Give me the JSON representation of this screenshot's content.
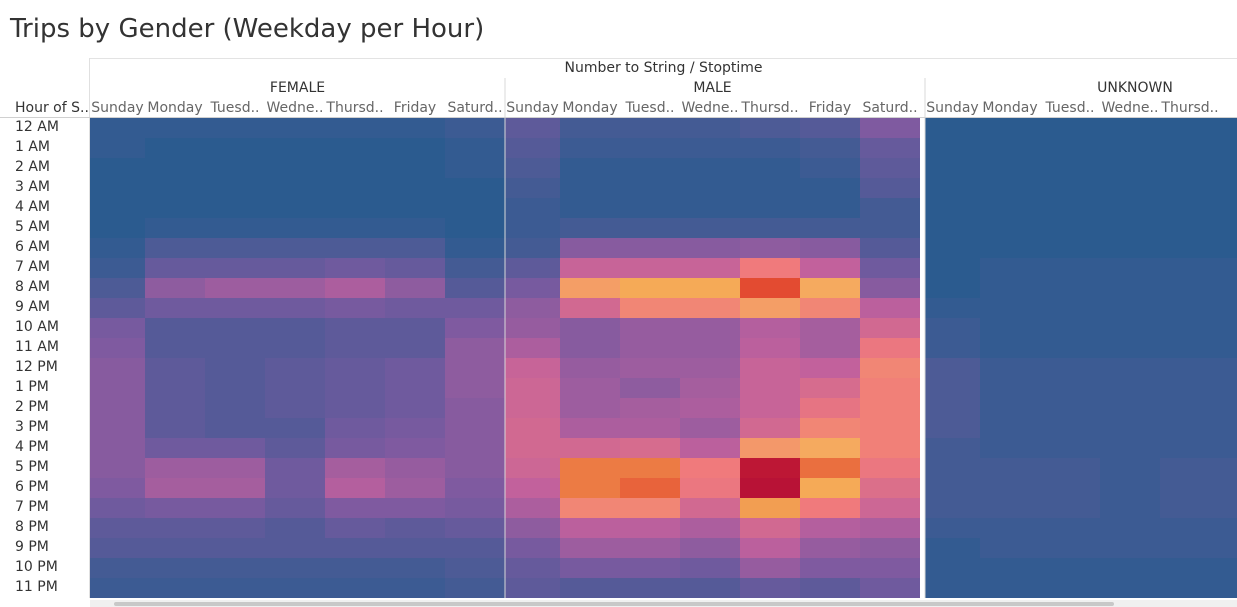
{
  "title": "Trips by Gender (Weekday per Hour)",
  "chart_data": {
    "type": "heatmap",
    "title": "Trips by Gender (Weekday per Hour)",
    "column_header": "Number to String / Stoptime",
    "row_header": "Hour of S..",
    "groups": [
      "FEMALE",
      "MALE",
      "UNKNOWN"
    ],
    "day_labels": [
      "Sunday",
      "Monday",
      "Tuesd..",
      "Wedne..",
      "Thursd..",
      "Friday",
      "Saturd.."
    ],
    "day_labels_unknown": [
      "Sunday",
      "Monday",
      "Tuesd..",
      "Wedne..",
      "Thursd.."
    ],
    "rows": [
      "12 AM",
      "1 AM",
      "2 AM",
      "3 AM",
      "4 AM",
      "5 AM",
      "6 AM",
      "7 AM",
      "8 AM",
      "9 AM",
      "10 AM",
      "11 AM",
      "12 PM",
      "1 PM",
      "2 PM",
      "3 PM",
      "4 PM",
      "5 PM",
      "6 PM",
      "7 PM",
      "8 PM",
      "9 PM",
      "10 PM",
      "11 PM"
    ],
    "color_scale": [
      "#2b5b8f",
      "#7a5aa0",
      "#c0609d",
      "#f07a7c",
      "#f6b25a",
      "#e2432e",
      "#b81236"
    ],
    "values": {
      "FEMALE": [
        [
          1,
          1,
          1,
          1,
          1,
          1,
          2
        ],
        [
          1,
          0,
          0,
          0,
          0,
          0,
          1
        ],
        [
          0,
          0,
          0,
          0,
          0,
          0,
          1
        ],
        [
          0,
          0,
          0,
          0,
          0,
          0,
          0
        ],
        [
          0,
          0,
          0,
          0,
          0,
          0,
          0
        ],
        [
          0,
          1,
          1,
          1,
          1,
          1,
          0
        ],
        [
          1,
          4,
          4,
          4,
          4,
          4,
          1
        ],
        [
          2,
          7,
          7,
          7,
          8,
          7,
          3
        ],
        [
          4,
          12,
          14,
          14,
          16,
          12,
          5
        ],
        [
          6,
          8,
          8,
          8,
          9,
          8,
          8
        ],
        [
          9,
          5,
          5,
          5,
          6,
          6,
          10
        ],
        [
          10,
          5,
          5,
          5,
          6,
          6,
          12
        ],
        [
          11,
          6,
          5,
          6,
          7,
          8,
          12
        ],
        [
          11,
          6,
          5,
          6,
          7,
          8,
          12
        ],
        [
          11,
          6,
          5,
          6,
          7,
          8,
          11
        ],
        [
          11,
          6,
          5,
          5,
          8,
          9,
          11
        ],
        [
          11,
          8,
          8,
          6,
          9,
          10,
          11
        ],
        [
          11,
          14,
          14,
          8,
          15,
          13,
          11
        ],
        [
          10,
          15,
          15,
          8,
          17,
          14,
          10
        ],
        [
          8,
          9,
          9,
          7,
          10,
          10,
          9
        ],
        [
          6,
          6,
          6,
          5,
          7,
          6,
          7
        ],
        [
          5,
          5,
          5,
          5,
          5,
          5,
          5
        ],
        [
          3,
          3,
          3,
          3,
          3,
          3,
          4
        ],
        [
          2,
          2,
          2,
          2,
          2,
          2,
          3
        ]
      ],
      "MALE": [
        [
          6,
          3,
          3,
          3,
          4,
          5,
          10
        ],
        [
          5,
          2,
          2,
          2,
          2,
          3,
          7
        ],
        [
          4,
          1,
          1,
          1,
          1,
          2,
          6
        ],
        [
          3,
          1,
          1,
          1,
          1,
          1,
          5
        ],
        [
          2,
          1,
          1,
          1,
          1,
          1,
          3
        ],
        [
          2,
          3,
          3,
          3,
          3,
          3,
          3
        ],
        [
          3,
          11,
          11,
          11,
          12,
          11,
          5
        ],
        [
          6,
          20,
          20,
          20,
          28,
          19,
          8
        ],
        [
          9,
          34,
          38,
          38,
          46,
          36,
          11
        ],
        [
          12,
          22,
          30,
          30,
          34,
          30,
          18
        ],
        [
          13,
          11,
          13,
          13,
          17,
          15,
          22
        ],
        [
          16,
          11,
          13,
          13,
          18,
          15,
          27
        ],
        [
          20,
          13,
          14,
          14,
          20,
          19,
          30
        ],
        [
          21,
          14,
          12,
          15,
          20,
          23,
          29
        ],
        [
          21,
          14,
          15,
          16,
          20,
          26,
          29
        ],
        [
          22,
          16,
          16,
          14,
          22,
          30,
          29
        ],
        [
          22,
          22,
          23,
          18,
          33,
          36,
          29
        ],
        [
          21,
          42,
          42,
          28,
          55,
          43,
          27
        ],
        [
          19,
          42,
          44,
          27,
          56,
          38,
          24
        ],
        [
          16,
          30,
          30,
          22,
          39,
          28,
          21
        ],
        [
          12,
          18,
          18,
          16,
          22,
          17,
          16
        ],
        [
          9,
          14,
          14,
          12,
          18,
          13,
          12
        ],
        [
          7,
          9,
          9,
          8,
          13,
          10,
          10
        ],
        [
          6,
          5,
          5,
          5,
          7,
          6,
          8
        ]
      ],
      "UNKNOWN": [
        [
          0,
          0,
          0,
          0,
          0,
          0,
          0
        ],
        [
          0,
          0,
          0,
          0,
          0,
          0,
          0
        ],
        [
          0,
          0,
          0,
          0,
          0,
          0,
          0
        ],
        [
          0,
          0,
          0,
          0,
          0,
          0,
          0
        ],
        [
          0,
          0,
          0,
          0,
          0,
          0,
          0
        ],
        [
          0,
          0,
          0,
          0,
          0,
          0,
          0
        ],
        [
          0,
          0,
          0,
          0,
          0,
          0,
          0
        ],
        [
          0,
          1,
          1,
          1,
          1,
          1,
          1
        ],
        [
          0,
          1,
          1,
          1,
          1,
          1,
          1
        ],
        [
          1,
          1,
          1,
          1,
          1,
          1,
          1
        ],
        [
          2,
          1,
          1,
          1,
          1,
          1,
          1
        ],
        [
          2,
          1,
          1,
          1,
          1,
          1,
          1
        ],
        [
          4,
          2,
          2,
          2,
          2,
          2,
          2
        ],
        [
          4,
          2,
          2,
          2,
          2,
          2,
          2
        ],
        [
          4,
          2,
          2,
          2,
          2,
          2,
          2
        ],
        [
          4,
          2,
          2,
          2,
          2,
          2,
          2
        ],
        [
          3,
          2,
          2,
          2,
          2,
          2,
          2
        ],
        [
          3,
          3,
          3,
          2,
          3,
          3,
          3
        ],
        [
          3,
          3,
          3,
          2,
          3,
          3,
          3
        ],
        [
          3,
          3,
          3,
          2,
          3,
          3,
          3
        ],
        [
          2,
          2,
          2,
          2,
          2,
          2,
          2
        ],
        [
          1,
          2,
          2,
          2,
          2,
          2,
          2
        ],
        [
          1,
          1,
          1,
          1,
          1,
          1,
          1
        ],
        [
          1,
          1,
          1,
          1,
          1,
          1,
          1
        ]
      ]
    },
    "max_value": 56
  }
}
